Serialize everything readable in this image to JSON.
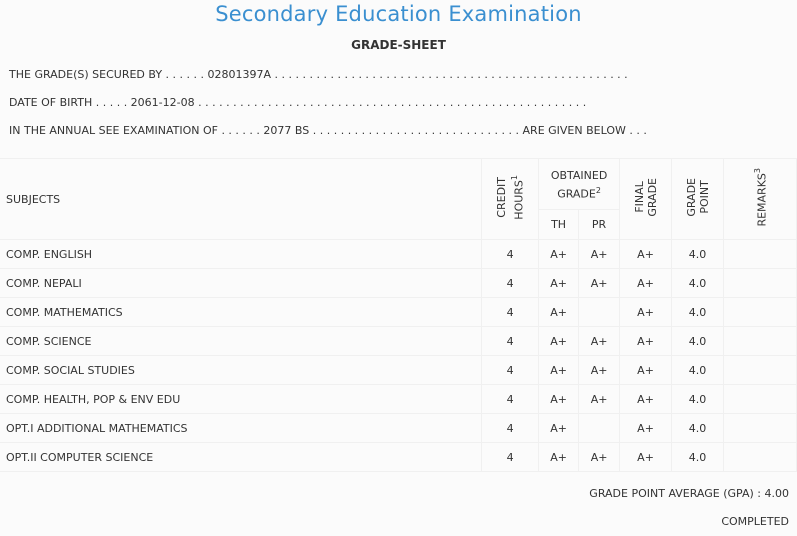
{
  "header": {
    "title": "Secondary Education Examination",
    "subtitle": "GRADE-SHEET"
  },
  "info": {
    "line1": "THE GRADE(S) SECURED BY . . . . . . 02801397A . . . . . . . . . . . . . . . . . . . . . . . . . . . . . . . . . . . . . . . . . . . . . . . . . . .",
    "line2": "DATE OF BIRTH . . . . . 2061-12-08 . . . . . . . . . . . . . . . . . . . . . . . . . . . . . . . . . . . . . . . . . . . . . . . . . . . . . . . .",
    "line3": "IN THE ANNUAL SEE EXAMINATION OF . . . . . . 2077 BS . . . . . . . . . . . . . . . . . . . . . . . . . . . . . . ARE GIVEN BELOW . . ."
  },
  "table": {
    "col_subjects": "SUBJECTS",
    "col_credit_a": "CREDIT",
    "col_credit_b": "HOURS",
    "col_credit_sup": "1",
    "col_obtained_a": "OBTAINED",
    "col_obtained_b": "GRADE",
    "col_obtained_sup": "2",
    "col_th": "TH",
    "col_pr": "PR",
    "col_final_a": "FINAL",
    "col_final_b": "GRADE",
    "col_point_a": "GRADE",
    "col_point_b": "POINT",
    "col_remarks": "REMARKS",
    "col_remarks_sup": "3",
    "rows": [
      {
        "subject": "COMP. ENGLISH",
        "credit": "4",
        "th": "A+",
        "pr": "A+",
        "final": "A+",
        "point": "4.0",
        "remarks": ""
      },
      {
        "subject": "COMP. NEPALI",
        "credit": "4",
        "th": "A+",
        "pr": "A+",
        "final": "A+",
        "point": "4.0",
        "remarks": ""
      },
      {
        "subject": "COMP. MATHEMATICS",
        "credit": "4",
        "th": "A+",
        "pr": "",
        "final": "A+",
        "point": "4.0",
        "remarks": ""
      },
      {
        "subject": "COMP. SCIENCE",
        "credit": "4",
        "th": "A+",
        "pr": "A+",
        "final": "A+",
        "point": "4.0",
        "remarks": ""
      },
      {
        "subject": "COMP. SOCIAL STUDIES",
        "credit": "4",
        "th": "A+",
        "pr": "A+",
        "final": "A+",
        "point": "4.0",
        "remarks": ""
      },
      {
        "subject": "COMP. HEALTH, POP & ENV EDU",
        "credit": "4",
        "th": "A+",
        "pr": "A+",
        "final": "A+",
        "point": "4.0",
        "remarks": ""
      },
      {
        "subject": "OPT.I ADDITIONAL MATHEMATICS",
        "credit": "4",
        "th": "A+",
        "pr": "",
        "final": "A+",
        "point": "4.0",
        "remarks": ""
      },
      {
        "subject": "OPT.II COMPUTER SCIENCE",
        "credit": "4",
        "th": "A+",
        "pr": "A+",
        "final": "A+",
        "point": "4.0",
        "remarks": ""
      }
    ]
  },
  "footer": {
    "gpa": "GRADE POINT AVERAGE (GPA) : 4.00",
    "status": "COMPLETED"
  },
  "colors": {
    "title": "#3a8fd0",
    "text": "#333333",
    "background": "#fbfbfb",
    "border": "#f0f0f0"
  }
}
